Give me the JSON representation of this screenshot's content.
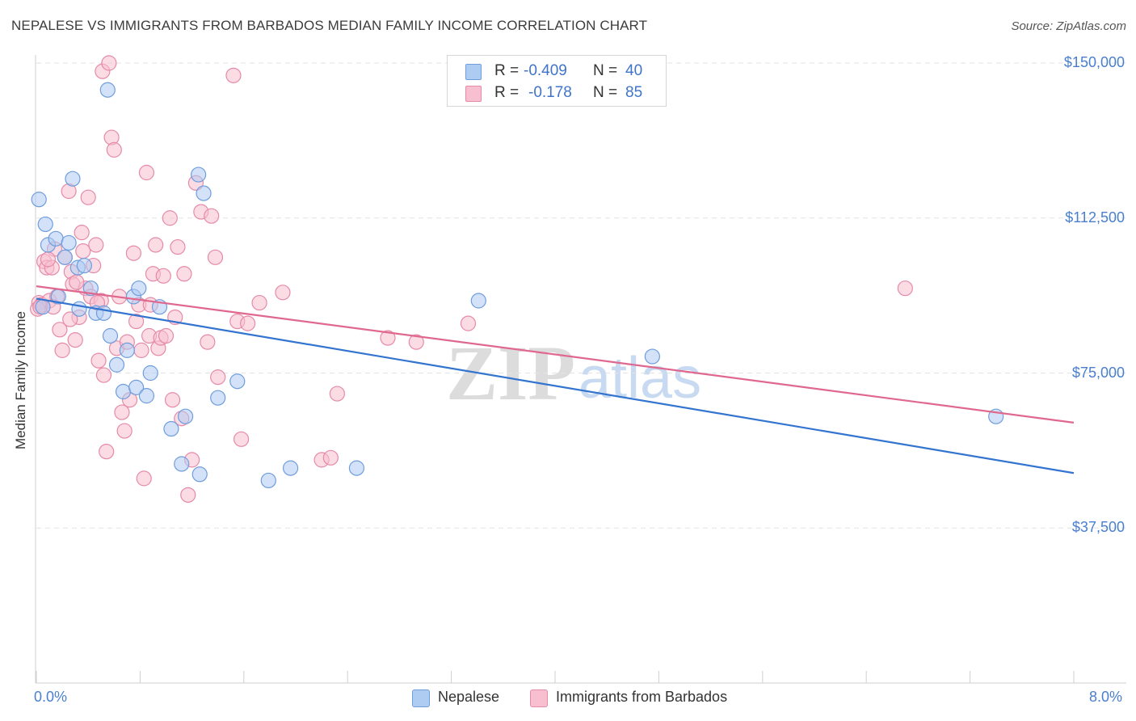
{
  "header": {
    "title": "NEPALESE VS IMMIGRANTS FROM BARBADOS MEDIAN FAMILY INCOME CORRELATION CHART",
    "source": "Source: ZipAtlas.com"
  },
  "watermark": {
    "zip": "ZIP",
    "atlas": "atlas"
  },
  "legend_top": [
    {
      "r_label": "R =",
      "r_value": "-0.409",
      "n_label": "N =",
      "n_value": "40"
    },
    {
      "r_label": "R =",
      "r_value": "-0.178",
      "n_label": "N =",
      "n_value": "85"
    }
  ],
  "legend_bottom": [
    "Nepalese",
    "Immigrants from Barbados"
  ],
  "colors": {
    "nepalese_fill": "#aecbf2",
    "nepalese_stroke": "#6f9ddc",
    "nepalese_line": "#3274d0",
    "barbados_fill": "#f7bfd0",
    "barbados_stroke": "#e68aa8",
    "barbados_line": "#e0688f",
    "grid": "#e3e3e3",
    "axis_text": "#4a7fd0"
  },
  "chart_data": {
    "type": "scatter",
    "title": "NEPALESE VS IMMIGRANTS FROM BARBADOS MEDIAN FAMILY INCOME CORRELATION CHART",
    "xlabel": "",
    "ylabel": "Median Family Income",
    "x_unit": "%",
    "xlim": [
      0.0,
      8.0
    ],
    "ylim": [
      0,
      152000
    ],
    "x_tick_labels": [
      "0.0%",
      "8.0%"
    ],
    "y_ticks": [
      37500,
      75000,
      112500,
      150000
    ],
    "y_tick_labels": [
      "$37,500",
      "$75,000",
      "$112,500",
      "$150,000"
    ],
    "grid": "horizontal dashed",
    "legend_position": "top-center",
    "series": [
      {
        "name": "Nepalese",
        "R": -0.409,
        "N": 40,
        "trend": {
          "x": [
            0.0,
            8.0
          ],
          "y": [
            93000,
            50800
          ]
        },
        "points": [
          [
            0.02,
            117000
          ],
          [
            0.07,
            111000
          ],
          [
            0.09,
            106000
          ],
          [
            0.15,
            107500
          ],
          [
            0.17,
            93500
          ],
          [
            0.22,
            103000
          ],
          [
            0.25,
            106500
          ],
          [
            0.28,
            122000
          ],
          [
            0.32,
            100500
          ],
          [
            0.37,
            101000
          ],
          [
            0.42,
            95500
          ],
          [
            0.46,
            89500
          ],
          [
            0.52,
            89500
          ],
          [
            0.55,
            143500
          ],
          [
            0.57,
            84000
          ],
          [
            0.62,
            77000
          ],
          [
            0.67,
            70500
          ],
          [
            0.7,
            80500
          ],
          [
            0.75,
            93500
          ],
          [
            0.77,
            71500
          ],
          [
            0.79,
            95500
          ],
          [
            0.85,
            69500
          ],
          [
            0.88,
            75000
          ],
          [
            0.95,
            91000
          ],
          [
            1.04,
            61500
          ],
          [
            1.12,
            53000
          ],
          [
            1.15,
            64500
          ],
          [
            1.25,
            123000
          ],
          [
            1.26,
            50500
          ],
          [
            1.29,
            118500
          ],
          [
            1.4,
            69000
          ],
          [
            1.55,
            73000
          ],
          [
            1.79,
            49000
          ],
          [
            1.96,
            52000
          ],
          [
            2.47,
            52000
          ],
          [
            3.41,
            92500
          ],
          [
            4.75,
            79000
          ],
          [
            7.4,
            64500
          ],
          [
            0.05,
            91000
          ],
          [
            0.33,
            90500
          ]
        ]
      },
      {
        "name": "Immigrants from Barbados",
        "R": -0.178,
        "N": 85,
        "trend": {
          "x": [
            0.0,
            8.0
          ],
          "y": [
            96000,
            63000
          ]
        },
        "points": [
          [
            0.02,
            92000
          ],
          [
            0.04,
            91500
          ],
          [
            0.06,
            102000
          ],
          [
            0.08,
            100500
          ],
          [
            0.1,
            92500
          ],
          [
            0.12,
            100500
          ],
          [
            0.14,
            105000
          ],
          [
            0.16,
            93500
          ],
          [
            0.18,
            85500
          ],
          [
            0.2,
            80500
          ],
          [
            0.22,
            103000
          ],
          [
            0.25,
            119000
          ],
          [
            0.27,
            99500
          ],
          [
            0.28,
            96500
          ],
          [
            0.3,
            83000
          ],
          [
            0.33,
            88500
          ],
          [
            0.35,
            109000
          ],
          [
            0.36,
            104500
          ],
          [
            0.38,
            95500
          ],
          [
            0.4,
            117500
          ],
          [
            0.42,
            93500
          ],
          [
            0.44,
            101000
          ],
          [
            0.46,
            106000
          ],
          [
            0.48,
            78000
          ],
          [
            0.5,
            92500
          ],
          [
            0.51,
            148000
          ],
          [
            0.52,
            74500
          ],
          [
            0.54,
            56000
          ],
          [
            0.56,
            150000
          ],
          [
            0.58,
            132000
          ],
          [
            0.6,
            129000
          ],
          [
            0.62,
            81000
          ],
          [
            0.64,
            93500
          ],
          [
            0.66,
            65500
          ],
          [
            0.68,
            61000
          ],
          [
            0.7,
            82500
          ],
          [
            0.72,
            68500
          ],
          [
            0.75,
            104000
          ],
          [
            0.77,
            87500
          ],
          [
            0.79,
            91500
          ],
          [
            0.81,
            80500
          ],
          [
            0.83,
            49500
          ],
          [
            0.85,
            123500
          ],
          [
            0.87,
            84000
          ],
          [
            0.88,
            91500
          ],
          [
            0.9,
            99000
          ],
          [
            0.92,
            106000
          ],
          [
            0.94,
            81000
          ],
          [
            0.96,
            83500
          ],
          [
            0.98,
            98500
          ],
          [
            1.0,
            84000
          ],
          [
            1.03,
            112500
          ],
          [
            1.05,
            68500
          ],
          [
            1.07,
            88500
          ],
          [
            1.09,
            105500
          ],
          [
            1.12,
            64000
          ],
          [
            1.14,
            99000
          ],
          [
            1.17,
            45500
          ],
          [
            1.2,
            54000
          ],
          [
            1.23,
            121000
          ],
          [
            1.27,
            114000
          ],
          [
            1.32,
            82500
          ],
          [
            1.35,
            113000
          ],
          [
            1.38,
            103000
          ],
          [
            1.4,
            74000
          ],
          [
            1.52,
            147000
          ],
          [
            1.55,
            87500
          ],
          [
            1.58,
            59000
          ],
          [
            1.63,
            87000
          ],
          [
            1.72,
            92000
          ],
          [
            1.9,
            94500
          ],
          [
            2.2,
            54000
          ],
          [
            2.27,
            54500
          ],
          [
            2.32,
            70000
          ],
          [
            2.71,
            83500
          ],
          [
            2.93,
            82500
          ],
          [
            3.33,
            87000
          ],
          [
            0.01,
            90500
          ],
          [
            0.03,
            91000
          ],
          [
            0.09,
            102500
          ],
          [
            0.13,
            91000
          ],
          [
            0.26,
            88000
          ],
          [
            0.31,
            97000
          ],
          [
            0.47,
            92000
          ],
          [
            6.7,
            95500
          ]
        ]
      }
    ]
  }
}
